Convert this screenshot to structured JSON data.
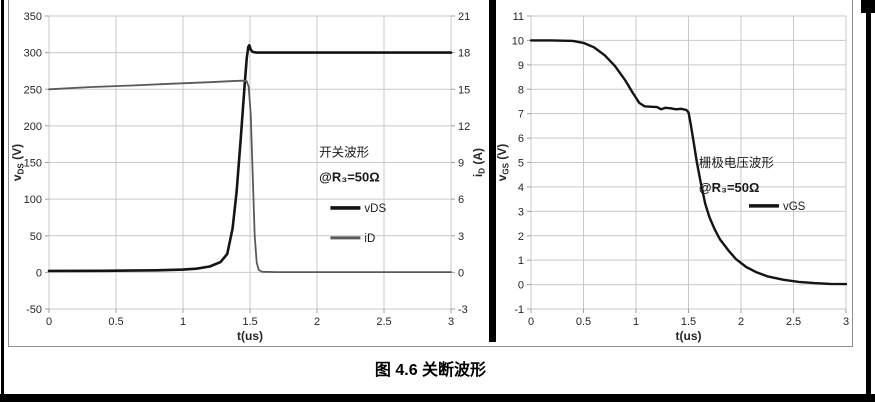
{
  "figure": {
    "caption": "图 4.6 关断波形"
  },
  "colors": {
    "grid": "#c9c9c9",
    "axis": "#9f9f9f",
    "tick_text": "#262626",
    "annotation_text": "#1a1a1a",
    "vds_line": "#141414",
    "id_line": "#5a5a5a",
    "vgs_line": "#141414",
    "panel_border": "#8f8f8f",
    "frame_black": "#000000"
  },
  "chart_data": [
    {
      "type": "line",
      "title": "开关波形",
      "xlabel": "t(us)",
      "x": {
        "min": 0,
        "max": 3,
        "tick_values": [
          0,
          0.5,
          1,
          1.5,
          2,
          2.5,
          3
        ],
        "tick_labels": [
          "0",
          "0.5",
          "1",
          "1.5",
          "2",
          "2.5",
          "3"
        ]
      },
      "y_left": {
        "title": {
          "base": "v",
          "sub": "DS",
          "rest": " (V)"
        },
        "min": -50,
        "max": 350,
        "tick_values": [
          350,
          300,
          250,
          200,
          150,
          100,
          50,
          0,
          -50
        ],
        "tick_labels": [
          "350",
          "300",
          "250",
          "200",
          "150",
          "100",
          "50",
          "0",
          "-50"
        ]
      },
      "y_right": {
        "title": {
          "base": "i",
          "sub": "D",
          "rest": " (A)"
        },
        "min": -3,
        "max": 21,
        "tick_values": [
          21,
          18,
          15,
          12,
          9,
          6,
          3,
          0,
          -3
        ],
        "tick_labels": [
          "21",
          "18",
          "15",
          "12",
          "9",
          "6",
          "3",
          "0",
          "-3"
        ]
      },
      "annotation": {
        "lines": [
          "开关波形",
          "@R₃=50Ω"
        ],
        "fx": 0.672,
        "fy": 0.48,
        "line_gap": 25
      },
      "legend": {
        "fx": 0.7,
        "fy": 0.655,
        "row_gap": 30
      },
      "series": [
        {
          "name": "vDS",
          "axis": "left",
          "color": "#141414",
          "width": 2.6,
          "points": [
            [
              0,
              2
            ],
            [
              0.4,
              2.2
            ],
            [
              0.8,
              2.8
            ],
            [
              1.0,
              3.8
            ],
            [
              1.1,
              5
            ],
            [
              1.2,
              8
            ],
            [
              1.28,
              14
            ],
            [
              1.33,
              25
            ],
            [
              1.37,
              60
            ],
            [
              1.4,
              110
            ],
            [
              1.43,
              180
            ],
            [
              1.46,
              255
            ],
            [
              1.475,
              292
            ],
            [
              1.487,
              308
            ],
            [
              1.495,
              310
            ],
            [
              1.505,
              304
            ],
            [
              1.52,
              301
            ],
            [
              1.55,
              300
            ],
            [
              2.0,
              300
            ],
            [
              2.5,
              300
            ],
            [
              3,
              300
            ]
          ]
        },
        {
          "name": "iD",
          "axis": "right",
          "color": "#5a5a5a",
          "width": 1.8,
          "points": [
            [
              0,
              15.0
            ],
            [
              0.3,
              15.18
            ],
            [
              0.6,
              15.3
            ],
            [
              0.9,
              15.45
            ],
            [
              1.2,
              15.58
            ],
            [
              1.35,
              15.66
            ],
            [
              1.44,
              15.7
            ],
            [
              1.475,
              15.66
            ],
            [
              1.49,
              15.2
            ],
            [
              1.505,
              13
            ],
            [
              1.52,
              8
            ],
            [
              1.535,
              3
            ],
            [
              1.55,
              0.8
            ],
            [
              1.565,
              0.2
            ],
            [
              1.59,
              0.05
            ],
            [
              1.7,
              0.02
            ],
            [
              2,
              0.02
            ],
            [
              2.5,
              0.02
            ],
            [
              3,
              0.02
            ]
          ]
        }
      ]
    },
    {
      "type": "line",
      "title": "栅极电压波形",
      "xlabel": "t(us)",
      "x": {
        "min": 0,
        "max": 3,
        "tick_values": [
          0,
          0.5,
          1,
          1.5,
          2,
          2.5,
          3
        ],
        "tick_labels": [
          "0",
          "0.5",
          "1",
          "1.5",
          "2",
          "2.5",
          "3"
        ]
      },
      "y_left": {
        "title": {
          "base": "v",
          "sub": "GS",
          "rest": " (V)"
        },
        "min": -1,
        "max": 11,
        "tick_values": [
          11,
          10,
          9,
          8,
          7,
          6,
          5,
          4,
          3,
          2,
          1,
          0,
          -1
        ],
        "tick_labels": [
          "11",
          "10",
          "9",
          "8",
          "7",
          "6",
          "5",
          "4",
          "3",
          "2",
          "1",
          "0",
          "-1"
        ]
      },
      "annotation": {
        "lines": [
          "栅极电压波形",
          "@R₃=50Ω"
        ],
        "fx": 0.533,
        "fy": 0.515,
        "line_gap": 25
      },
      "legend": {
        "fx": 0.692,
        "fy": 0.648,
        "row_gap": 30
      },
      "series": [
        {
          "name": "vGS",
          "axis": "left",
          "color": "#141414",
          "width": 2.4,
          "points": [
            [
              0,
              10
            ],
            [
              0.2,
              10
            ],
            [
              0.4,
              9.98
            ],
            [
              0.5,
              9.9
            ],
            [
              0.6,
              9.72
            ],
            [
              0.7,
              9.4
            ],
            [
              0.8,
              8.95
            ],
            [
              0.9,
              8.35
            ],
            [
              0.97,
              7.85
            ],
            [
              1.03,
              7.45
            ],
            [
              1.08,
              7.3
            ],
            [
              1.15,
              7.28
            ],
            [
              1.2,
              7.27
            ],
            [
              1.24,
              7.18
            ],
            [
              1.28,
              7.24
            ],
            [
              1.33,
              7.22
            ],
            [
              1.38,
              7.18
            ],
            [
              1.43,
              7.2
            ],
            [
              1.48,
              7.15
            ],
            [
              1.5,
              7.05
            ],
            [
              1.52,
              6.6
            ],
            [
              1.55,
              5.8
            ],
            [
              1.58,
              5.0
            ],
            [
              1.62,
              4.1
            ],
            [
              1.66,
              3.3
            ],
            [
              1.7,
              2.75
            ],
            [
              1.75,
              2.25
            ],
            [
              1.8,
              1.85
            ],
            [
              1.88,
              1.4
            ],
            [
              1.95,
              1.05
            ],
            [
              2.05,
              0.72
            ],
            [
              2.15,
              0.5
            ],
            [
              2.25,
              0.34
            ],
            [
              2.4,
              0.2
            ],
            [
              2.55,
              0.11
            ],
            [
              2.7,
              0.06
            ],
            [
              2.85,
              0.03
            ],
            [
              3,
              0.02
            ]
          ]
        }
      ]
    }
  ]
}
